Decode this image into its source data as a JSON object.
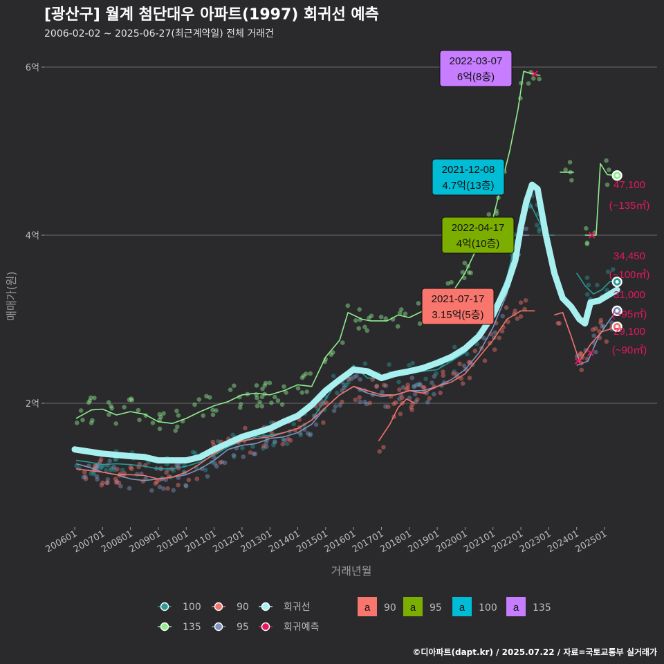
{
  "header": {
    "title": "[광산구] 월계 첨단대우 아파트(1997) 회귀선 예측",
    "subtitle": "2006-02-02 ~ 2025-06-27(최근계약일) 전체 거래건"
  },
  "credit": "©디아파트(dapt.kr) / 2025.07.22 / 자료=국토교통부 실거래가",
  "chart_data": {
    "type": "line",
    "xlabel": "거래년월",
    "ylabel": "매매가(원)",
    "x_range": [
      "2006-01",
      "2025-12"
    ],
    "ylim": [
      0.72,
      6.3
    ],
    "y_ticks": [
      {
        "value": 2,
        "label": "2억"
      },
      {
        "value": 4,
        "label": "4억"
      },
      {
        "value": 6,
        "label": "6억"
      }
    ],
    "x_ticks": [
      "200601",
      "200701",
      "200801",
      "200901",
      "201001",
      "201101",
      "201201",
      "201301",
      "201401",
      "201501",
      "201601",
      "201701",
      "201801",
      "201901",
      "202001",
      "202101",
      "202201",
      "202301",
      "202401",
      "202501"
    ],
    "grid": "horizontal",
    "series": [
      {
        "name": "135",
        "color": "#90ee90",
        "points": [
          [
            2006.05,
            1.82
          ],
          [
            2006.6,
            1.92
          ],
          [
            2007.0,
            1.93
          ],
          [
            2007.5,
            1.86
          ],
          [
            2008.0,
            1.9
          ],
          [
            2008.5,
            1.87
          ],
          [
            2009.0,
            1.78
          ],
          [
            2009.5,
            1.76
          ],
          [
            2010.0,
            1.82
          ],
          [
            2010.5,
            1.9
          ],
          [
            2011.0,
            1.97
          ],
          [
            2011.5,
            2.02
          ],
          [
            2012.0,
            2.1
          ],
          [
            2012.5,
            2.12
          ],
          [
            2013.0,
            2.1
          ],
          [
            2013.5,
            2.15
          ],
          [
            2014.0,
            2.22
          ],
          [
            2014.5,
            2.2
          ],
          [
            2015.0,
            2.55
          ],
          [
            2015.5,
            2.75
          ],
          [
            2015.8,
            3.08
          ],
          [
            2016.3,
            3.0
          ],
          [
            2016.6,
            2.98
          ],
          [
            2017.2,
            2.98
          ],
          [
            2017.6,
            3.05
          ],
          [
            2018.0,
            3.02
          ],
          [
            2018.5,
            3.1
          ],
          [
            2019.0,
            3.18
          ],
          [
            2019.5,
            3.3
          ],
          [
            2020.0,
            3.55
          ],
          [
            2020.5,
            3.9
          ],
          [
            2021.0,
            4.2
          ],
          [
            2021.3,
            4.6
          ],
          [
            2021.6,
            5.0
          ],
          [
            2021.9,
            5.5
          ],
          [
            2022.1,
            5.95
          ],
          [
            2022.4,
            5.92
          ],
          [
            2022.7,
            5.9
          ]
        ]
      },
      {
        "name": "100",
        "color": "#2a9a9a",
        "points": [
          [
            2006.05,
            1.32
          ],
          [
            2006.5,
            1.3
          ],
          [
            2007.0,
            1.27
          ],
          [
            2007.5,
            1.28
          ],
          [
            2008.0,
            1.27
          ],
          [
            2008.5,
            1.25
          ],
          [
            2009.0,
            1.22
          ],
          [
            2009.5,
            1.22
          ],
          [
            2010.0,
            1.25
          ],
          [
            2010.5,
            1.3
          ],
          [
            2011.0,
            1.38
          ],
          [
            2011.5,
            1.48
          ],
          [
            2012.0,
            1.55
          ],
          [
            2012.5,
            1.6
          ],
          [
            2013.0,
            1.62
          ],
          [
            2013.5,
            1.65
          ],
          [
            2014.0,
            1.7
          ],
          [
            2014.5,
            1.8
          ],
          [
            2015.0,
            2.05
          ],
          [
            2015.5,
            2.3
          ],
          [
            2016.0,
            2.45
          ],
          [
            2016.5,
            2.3
          ],
          [
            2017.0,
            2.3
          ],
          [
            2017.5,
            2.32
          ],
          [
            2018.0,
            2.35
          ],
          [
            2018.5,
            2.38
          ],
          [
            2019.0,
            2.4
          ],
          [
            2019.5,
            2.5
          ],
          [
            2020.0,
            2.6
          ],
          [
            2020.5,
            2.8
          ],
          [
            2021.0,
            3.1
          ],
          [
            2021.5,
            3.5
          ],
          [
            2021.8,
            3.9
          ],
          [
            2022.0,
            4.2
          ],
          [
            2022.3,
            4.4
          ],
          [
            2022.6,
            4.2
          ],
          [
            2022.9,
            4.0
          ],
          [
            2023.2,
            4.0
          ]
        ]
      },
      {
        "name": "100",
        "color": "#2a9a9a",
        "points": [
          [
            2024.0,
            3.55
          ],
          [
            2024.3,
            3.4
          ],
          [
            2024.6,
            3.3
          ],
          [
            2024.9,
            3.35
          ],
          [
            2025.2,
            3.45
          ],
          [
            2025.45,
            3.4445
          ]
        ]
      },
      {
        "name": "95",
        "color": "#7f95bf",
        "points": [
          [
            2006.05,
            1.28
          ],
          [
            2006.5,
            1.24
          ],
          [
            2007.0,
            1.18
          ],
          [
            2007.5,
            1.15
          ],
          [
            2008.0,
            1.1
          ],
          [
            2008.5,
            1.08
          ],
          [
            2009.0,
            1.1
          ],
          [
            2009.5,
            1.12
          ],
          [
            2010.0,
            1.15
          ],
          [
            2010.5,
            1.22
          ],
          [
            2011.0,
            1.32
          ],
          [
            2011.5,
            1.45
          ],
          [
            2012.0,
            1.5
          ],
          [
            2012.5,
            1.52
          ],
          [
            2013.0,
            1.58
          ],
          [
            2013.5,
            1.6
          ],
          [
            2014.0,
            1.65
          ],
          [
            2014.5,
            1.75
          ],
          [
            2015.0,
            1.95
          ],
          [
            2015.5,
            2.1
          ],
          [
            2016.0,
            2.2
          ],
          [
            2016.5,
            2.12
          ],
          [
            2017.0,
            2.08
          ],
          [
            2017.5,
            2.1
          ],
          [
            2018.0,
            2.15
          ],
          [
            2018.5,
            2.15
          ],
          [
            2019.0,
            2.2
          ],
          [
            2019.5,
            2.28
          ],
          [
            2020.0,
            2.4
          ],
          [
            2020.5,
            2.6
          ],
          [
            2021.0,
            2.9
          ],
          [
            2021.5,
            3.3
          ],
          [
            2021.8,
            3.7
          ],
          [
            2022.0,
            4.0
          ],
          [
            2022.3,
            4.0
          ]
        ]
      },
      {
        "name": "95",
        "color": "#7f95bf",
        "points": [
          [
            2024.0,
            2.45
          ],
          [
            2024.4,
            2.5
          ],
          [
            2024.8,
            2.8
          ],
          [
            2025.2,
            3.0
          ],
          [
            2025.45,
            3.1
          ]
        ]
      },
      {
        "name": "90",
        "color": "#f4746c",
        "points": [
          [
            2006.05,
            1.22
          ],
          [
            2006.5,
            1.2
          ],
          [
            2007.0,
            1.18
          ],
          [
            2007.5,
            1.15
          ],
          [
            2008.0,
            1.15
          ],
          [
            2008.5,
            1.14
          ],
          [
            2009.0,
            1.1
          ],
          [
            2009.5,
            1.12
          ],
          [
            2010.0,
            1.18
          ],
          [
            2010.5,
            1.28
          ],
          [
            2011.0,
            1.4
          ],
          [
            2011.5,
            1.5
          ],
          [
            2012.0,
            1.55
          ],
          [
            2012.5,
            1.58
          ],
          [
            2013.0,
            1.6
          ],
          [
            2013.5,
            1.65
          ],
          [
            2014.0,
            1.7
          ],
          [
            2014.5,
            1.8
          ],
          [
            2015.0,
            1.95
          ],
          [
            2015.5,
            2.1
          ],
          [
            2016.0,
            2.2
          ],
          [
            2016.5,
            2.15
          ],
          [
            2017.0,
            2.1
          ],
          [
            2017.5,
            2.1
          ],
          [
            2018.0,
            2.15
          ],
          [
            2018.5,
            2.12
          ],
          [
            2019.0,
            2.2
          ],
          [
            2019.5,
            2.25
          ],
          [
            2020.0,
            2.35
          ],
          [
            2020.5,
            2.55
          ],
          [
            2021.0,
            2.75
          ],
          [
            2021.5,
            3.0
          ],
          [
            2022.0,
            3.1
          ],
          [
            2022.5,
            3.1
          ]
        ]
      },
      {
        "name": "90",
        "color": "#f4746c",
        "points": [
          [
            2016.9,
            1.55
          ],
          [
            2017.3,
            1.75
          ],
          [
            2017.6,
            1.95
          ],
          [
            2017.9,
            2.05
          ],
          [
            2018.2,
            2.0
          ]
        ]
      },
      {
        "name": "90",
        "color": "#f4746c",
        "points": [
          [
            2023.2,
            3.05
          ],
          [
            2023.5,
            3.08
          ],
          [
            2023.8,
            2.8
          ],
          [
            2024.1,
            2.5
          ],
          [
            2024.5,
            2.7
          ],
          [
            2024.9,
            2.85
          ],
          [
            2025.45,
            2.91
          ]
        ]
      },
      {
        "name": "135",
        "color": "#90ee90",
        "points": [
          [
            2023.4,
            4.75
          ],
          [
            2023.9,
            4.75
          ]
        ]
      },
      {
        "name": "135",
        "color": "#90ee90",
        "points": [
          [
            2024.3,
            4.0
          ],
          [
            2024.7,
            4.0
          ],
          [
            2024.85,
            4.85
          ],
          [
            2025.1,
            4.72
          ],
          [
            2025.45,
            4.71
          ]
        ]
      }
    ],
    "regression": {
      "name": "회귀선",
      "color": "#a8f0f0",
      "points": [
        [
          2006.0,
          1.45
        ],
        [
          2007.0,
          1.4
        ],
        [
          2008.0,
          1.37
        ],
        [
          2008.5,
          1.36
        ],
        [
          2009.0,
          1.32
        ],
        [
          2010.0,
          1.32
        ],
        [
          2010.5,
          1.36
        ],
        [
          2011.0,
          1.45
        ],
        [
          2012.0,
          1.6
        ],
        [
          2013.0,
          1.7
        ],
        [
          2013.5,
          1.78
        ],
        [
          2014.0,
          1.85
        ],
        [
          2014.5,
          1.98
        ],
        [
          2015.0,
          2.15
        ],
        [
          2015.5,
          2.28
        ],
        [
          2016.0,
          2.4
        ],
        [
          2016.5,
          2.38
        ],
        [
          2017.0,
          2.3
        ],
        [
          2017.5,
          2.35
        ],
        [
          2018.0,
          2.38
        ],
        [
          2018.5,
          2.42
        ],
        [
          2019.0,
          2.48
        ],
        [
          2019.5,
          2.55
        ],
        [
          2020.0,
          2.65
        ],
        [
          2020.5,
          2.8
        ],
        [
          2021.0,
          3.05
        ],
        [
          2021.5,
          3.4
        ],
        [
          2021.8,
          3.7
        ],
        [
          2022.0,
          4.1
        ],
        [
          2022.2,
          4.4
        ],
        [
          2022.4,
          4.6
        ],
        [
          2022.6,
          4.55
        ],
        [
          2022.9,
          4.0
        ],
        [
          2023.2,
          3.55
        ],
        [
          2023.5,
          3.25
        ],
        [
          2023.8,
          3.15
        ],
        [
          2024.1,
          3.0
        ],
        [
          2024.3,
          2.95
        ],
        [
          2024.5,
          3.2
        ],
        [
          2024.8,
          3.22
        ],
        [
          2025.1,
          3.28
        ],
        [
          2025.45,
          3.35
        ]
      ]
    },
    "forecast": {
      "name": "회귀예측",
      "color": "#e8175d"
    },
    "legend": {
      "placement": "bottom",
      "line_items": [
        "100",
        "90",
        "회귀선",
        "135",
        "95",
        "회귀예측"
      ],
      "label_items": [
        "90",
        "95",
        "100",
        "135"
      ],
      "label_glyph": "a"
    },
    "annotations": [
      {
        "date": "2022-03-07",
        "price": "6억(8층)",
        "x": 2022.17,
        "y": 6.0,
        "fill": "#c77dff",
        "series": "135"
      },
      {
        "date": "2021-12-08",
        "price": "4.7억(13층)",
        "x": 2021.93,
        "y": 4.7,
        "fill": "#00bcd4",
        "series": "100"
      },
      {
        "date": "2022-04-17",
        "price": "4억(10층)",
        "x": 2022.3,
        "y": 4.0,
        "fill": "#7cae00",
        "series": "95"
      },
      {
        "date": "2021-07-17",
        "price": "3.15억(5층)",
        "x": 2021.54,
        "y": 3.15,
        "fill": "#f8766d",
        "series": "90"
      }
    ],
    "end_labels": [
      {
        "value": "47,100",
        "area": "(~135㎡)",
        "y": 4.71,
        "series_color": "#90ee90"
      },
      {
        "value": "34,450",
        "area": "(~100㎡)",
        "y": 3.4445,
        "series_color": "#2a9a9a"
      },
      {
        "value": "31,000",
        "area": "(~95㎡)",
        "y": 3.1,
        "series_color": "#7f95bf"
      },
      {
        "value": "29,100",
        "area": "(~90㎡)",
        "y": 2.91,
        "series_color": "#f4746c"
      }
    ]
  }
}
